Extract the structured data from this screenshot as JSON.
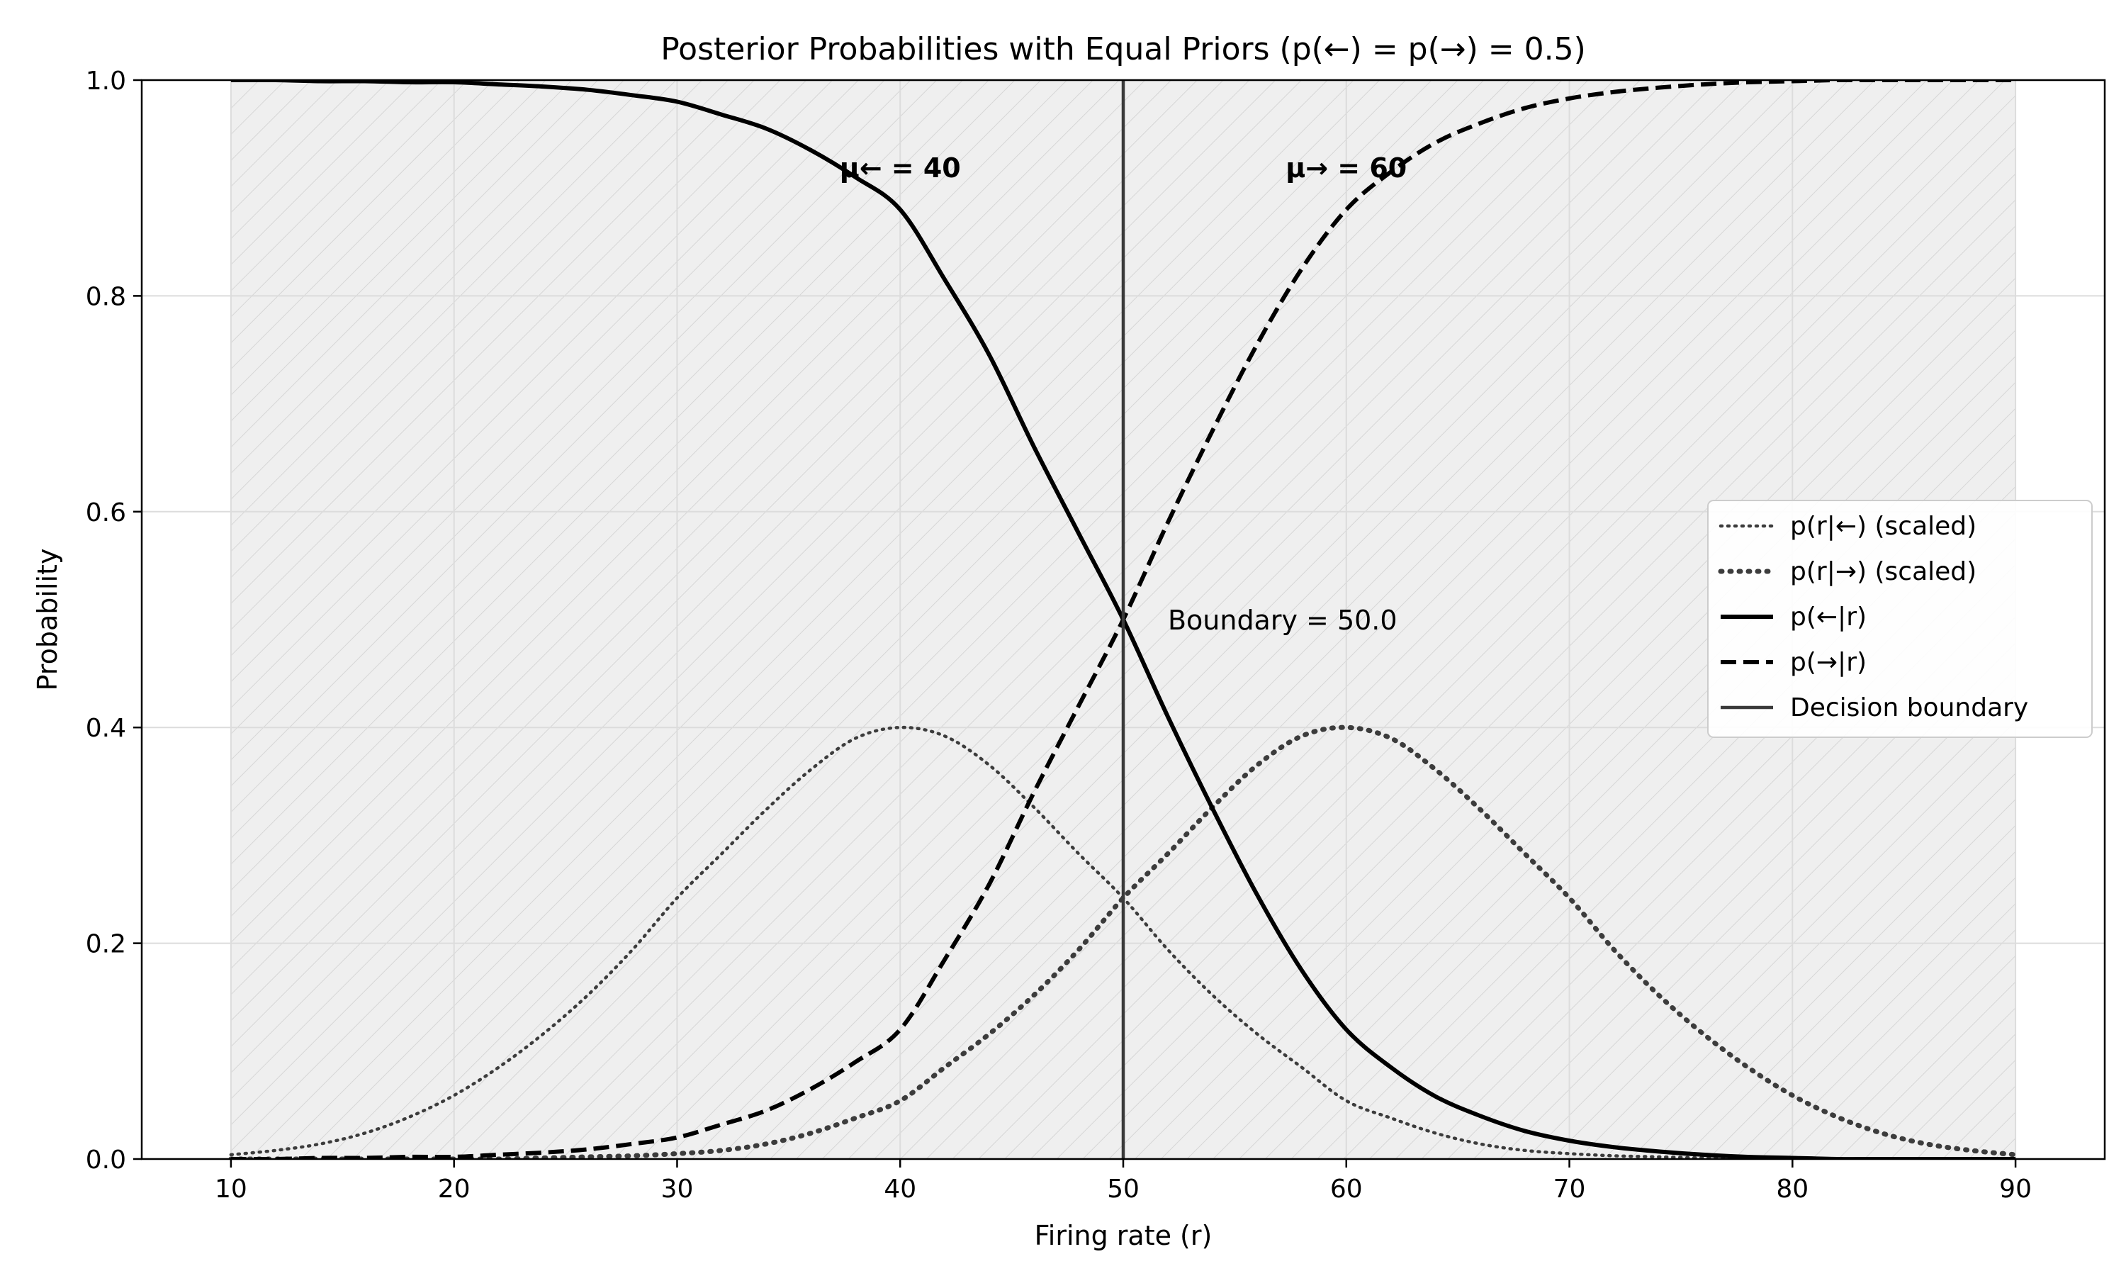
{
  "chart_data": {
    "type": "line",
    "title": "Posterior Probabilities with Equal Priors (p(←) = p(→) = 0.5)",
    "xlabel": "Firing rate (r)",
    "ylabel": "Probability",
    "xlim": [
      6,
      94
    ],
    "ylim": [
      0,
      1
    ],
    "xticks": [
      "10",
      "20",
      "30",
      "40",
      "50",
      "60",
      "70",
      "80",
      "90"
    ],
    "yticks": [
      "0.0",
      "0.2",
      "0.4",
      "0.6",
      "0.8",
      "1.0"
    ],
    "grid": true,
    "shaded_region": [
      10,
      90
    ],
    "x": [
      10,
      12,
      14,
      16,
      18,
      20,
      22,
      24,
      26,
      28,
      30,
      32,
      34,
      36,
      38,
      40,
      42,
      44,
      46,
      48,
      50,
      52,
      54,
      56,
      58,
      60,
      62,
      64,
      66,
      68,
      70,
      72,
      74,
      76,
      78,
      80,
      82,
      84,
      86,
      88,
      90
    ],
    "series": [
      {
        "name": "p(r|←) (scaled)",
        "style": "dotted-thin",
        "values": [
          0.004,
          0.008,
          0.014,
          0.024,
          0.039,
          0.059,
          0.085,
          0.116,
          0.152,
          0.194,
          0.242,
          0.283,
          0.324,
          0.361,
          0.39,
          0.4,
          0.392,
          0.365,
          0.326,
          0.283,
          0.242,
          0.194,
          0.152,
          0.116,
          0.085,
          0.054,
          0.038,
          0.024,
          0.014,
          0.008,
          0.005,
          0.003,
          0.002,
          0.001,
          0.0,
          0.0,
          0.0,
          0.0,
          0.0,
          0.0,
          0.0
        ]
      },
      {
        "name": "p(r|→) (scaled)",
        "style": "dotted-thick",
        "values": [
          0.0,
          0.0,
          0.0,
          0.0,
          0.0,
          0.0,
          0.0,
          0.001,
          0.002,
          0.003,
          0.005,
          0.008,
          0.014,
          0.024,
          0.038,
          0.054,
          0.085,
          0.116,
          0.152,
          0.194,
          0.242,
          0.283,
          0.326,
          0.365,
          0.392,
          0.4,
          0.39,
          0.361,
          0.324,
          0.283,
          0.242,
          0.194,
          0.152,
          0.116,
          0.085,
          0.059,
          0.039,
          0.024,
          0.014,
          0.008,
          0.004
        ]
      },
      {
        "name": "p(←|r)",
        "style": "solid",
        "values": [
          1.0,
          1.0,
          0.999,
          0.999,
          0.998,
          0.998,
          0.996,
          0.994,
          0.991,
          0.986,
          0.98,
          0.968,
          0.955,
          0.935,
          0.91,
          0.88,
          0.815,
          0.745,
          0.66,
          0.58,
          0.5,
          0.41,
          0.325,
          0.245,
          0.175,
          0.12,
          0.085,
          0.058,
          0.04,
          0.026,
          0.017,
          0.011,
          0.007,
          0.004,
          0.002,
          0.001,
          0.0,
          0.0,
          0.0,
          0.0,
          0.0
        ]
      },
      {
        "name": "p(→|r)",
        "style": "dashed",
        "values": [
          0.0,
          0.0,
          0.001,
          0.001,
          0.002,
          0.002,
          0.004,
          0.006,
          0.009,
          0.014,
          0.02,
          0.032,
          0.045,
          0.065,
          0.09,
          0.12,
          0.185,
          0.255,
          0.34,
          0.42,
          0.5,
          0.59,
          0.675,
          0.755,
          0.825,
          0.88,
          0.915,
          0.942,
          0.96,
          0.974,
          0.983,
          0.989,
          0.993,
          0.996,
          0.998,
          0.999,
          1.0,
          1.0,
          1.0,
          1.0,
          1.0
        ]
      }
    ],
    "decision_boundary": {
      "name": "Decision boundary",
      "x": 50
    },
    "annotations": [
      {
        "text": "μ← = 40",
        "x": 40,
        "y": 0.91
      },
      {
        "text": "μ→ = 60",
        "x": 60,
        "y": 0.91
      },
      {
        "text": "Boundary = 50.0",
        "x": 52,
        "y": 0.5
      }
    ],
    "legend": {
      "placement": "center-right",
      "entries": [
        "p(r|←) (scaled)",
        "p(r|→) (scaled)",
        "p(←|r)",
        "p(→|r)",
        "Decision boundary"
      ]
    },
    "colors": {
      "posterior": "#000000",
      "likelihood": "#3c3c3c",
      "boundary": "#3a3a3a",
      "shade": "#efefef",
      "grid": "#dcdcdc"
    }
  }
}
